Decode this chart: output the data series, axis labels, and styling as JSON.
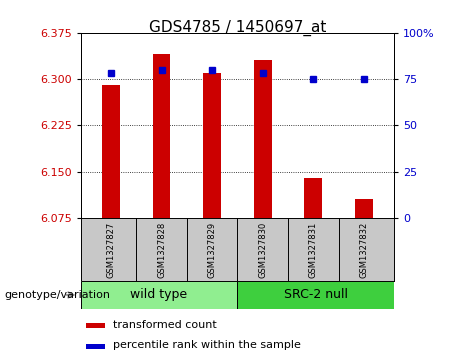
{
  "title": "GDS4785 / 1450697_at",
  "samples": [
    "GSM1327827",
    "GSM1327828",
    "GSM1327829",
    "GSM1327830",
    "GSM1327831",
    "GSM1327832"
  ],
  "transformed_count": [
    6.29,
    6.34,
    6.31,
    6.33,
    6.14,
    6.105
  ],
  "percentile_rank": [
    78,
    80,
    80,
    78,
    75,
    75
  ],
  "ylim_left": [
    6.075,
    6.375
  ],
  "ylim_right": [
    0,
    100
  ],
  "yticks_left": [
    6.075,
    6.15,
    6.225,
    6.3,
    6.375
  ],
  "yticks_right": [
    0,
    25,
    50,
    75,
    100
  ],
  "ytick_labels_right": [
    "0",
    "25",
    "50",
    "75",
    "100%"
  ],
  "bar_color": "#cc0000",
  "dot_color": "#0000cc",
  "bar_bottom": 6.075,
  "legend_items": [
    {
      "label": "transformed count",
      "color": "#cc0000"
    },
    {
      "label": "percentile rank within the sample",
      "color": "#0000cc"
    }
  ],
  "background_color": "#ffffff",
  "plot_bg_color": "#ffffff",
  "grid_color": "#000000",
  "title_fontsize": 11,
  "tick_fontsize": 8,
  "sample_fontsize": 6,
  "geno_fontsize": 9,
  "legend_fontsize": 8,
  "geno_label_fontsize": 8,
  "sample_box_color": "#c8c8c8",
  "wild_type_color": "#90ee90",
  "src2_null_color": "#3ecf3e"
}
